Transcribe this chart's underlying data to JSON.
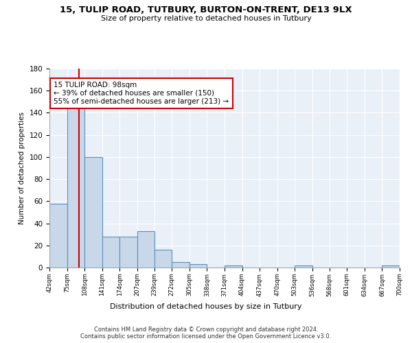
{
  "title": "15, TULIP ROAD, TUTBURY, BURTON-ON-TRENT, DE13 9LX",
  "subtitle": "Size of property relative to detached houses in Tutbury",
  "xlabel": "Distribution of detached houses by size in Tutbury",
  "ylabel": "Number of detached properties",
  "bar_color": "#c8d8e8",
  "bar_edge_color": "#5a8fc0",
  "background_color": "#eaf0f8",
  "grid_color": "#ffffff",
  "vline_color": "#cc0000",
  "vline_x": 98,
  "annotation_text": "15 TULIP ROAD: 98sqm\n← 39% of detached houses are smaller (150)\n55% of semi-detached houses are larger (213) →",
  "annotation_box_color": "#ffffff",
  "annotation_box_edge": "#cc0000",
  "bin_edges": [
    42,
    75,
    108,
    141,
    174,
    207,
    239,
    272,
    305,
    338,
    371,
    404,
    437,
    470,
    503,
    536,
    568,
    601,
    634,
    667,
    700
  ],
  "bar_heights": [
    58,
    145,
    100,
    28,
    28,
    33,
    16,
    5,
    3,
    0,
    2,
    0,
    0,
    0,
    2,
    0,
    0,
    0,
    0,
    2
  ],
  "ylim": [
    0,
    180
  ],
  "yticks": [
    0,
    20,
    40,
    60,
    80,
    100,
    120,
    140,
    160,
    180
  ],
  "footer_line1": "Contains HM Land Registry data © Crown copyright and database right 2024.",
  "footer_line2": "Contains public sector information licensed under the Open Government Licence v3.0."
}
